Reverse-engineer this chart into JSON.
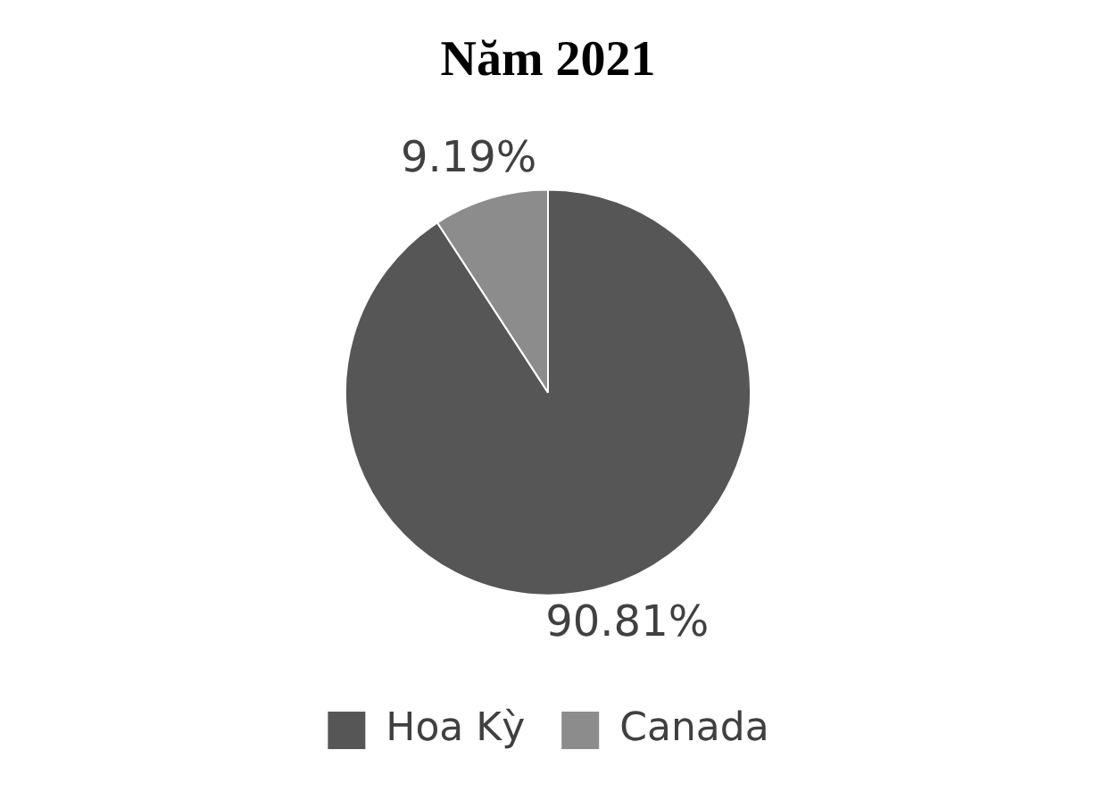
{
  "chart_data": {
    "type": "pie",
    "title": "Năm 2021",
    "categories": [
      "Hoa Kỳ",
      "Canada"
    ],
    "values": [
      90.81,
      9.19
    ],
    "colors": [
      "#565656",
      "#8c8c8c"
    ],
    "value_labels": [
      "90.81%",
      "9.19%"
    ],
    "legend": "bottom"
  }
}
